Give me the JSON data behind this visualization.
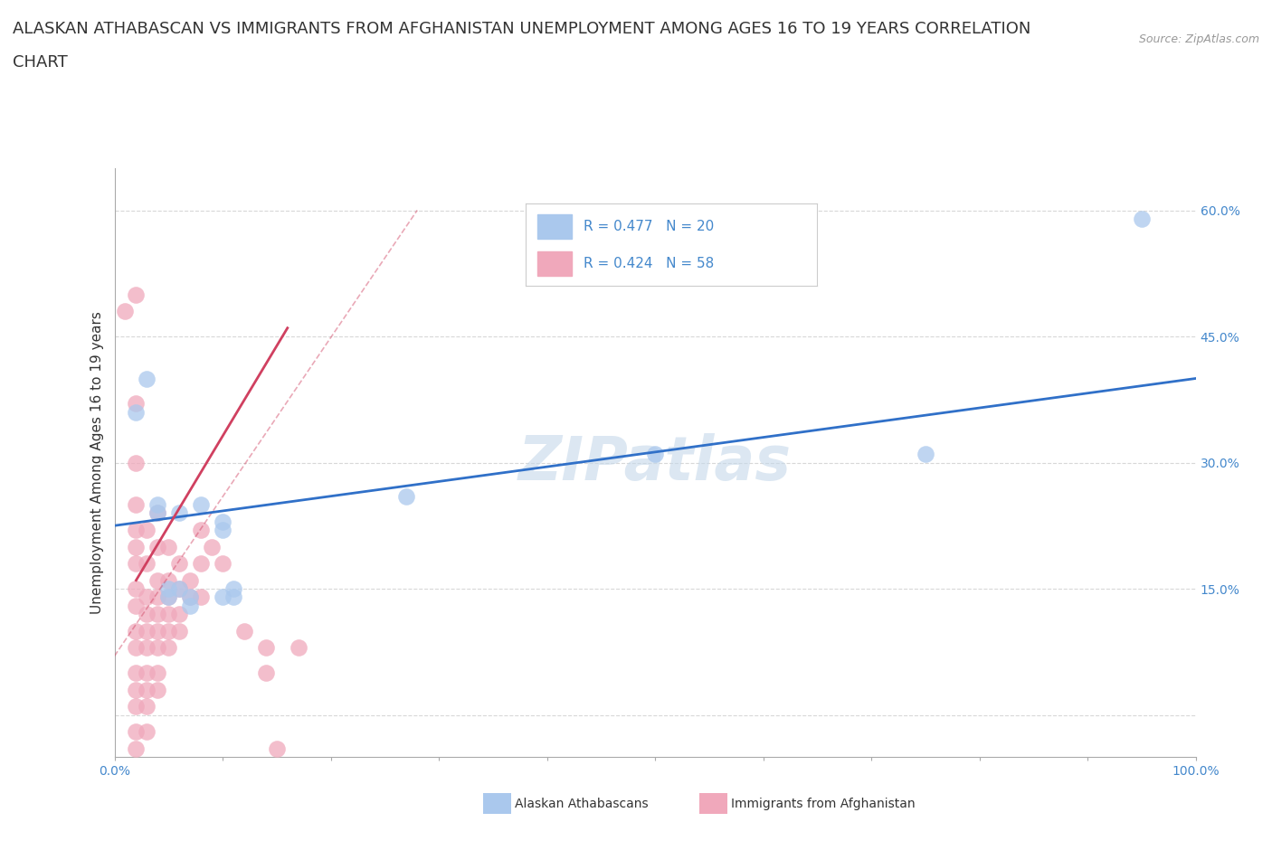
{
  "title_line1": "ALASKAN ATHABASCAN VS IMMIGRANTS FROM AFGHANISTAN UNEMPLOYMENT AMONG AGES 16 TO 19 YEARS CORRELATION",
  "title_line2": "CHART",
  "source": "Source: ZipAtlas.com",
  "ylabel": "Unemployment Among Ages 16 to 19 years",
  "xlim": [
    0.0,
    1.0
  ],
  "ylim": [
    -0.05,
    0.65
  ],
  "yticks": [
    0.0,
    0.15,
    0.3,
    0.45,
    0.6
  ],
  "ytick_labels": [
    "",
    "15.0%",
    "30.0%",
    "45.0%",
    "60.0%"
  ],
  "xtick_positions": [
    0.0,
    0.1,
    0.2,
    0.3,
    0.4,
    0.5,
    0.6,
    0.7,
    0.8,
    0.9,
    1.0
  ],
  "watermark": "ZIPatlas",
  "blue_color": "#aac8ed",
  "pink_color": "#f0a8bb",
  "blue_line_color": "#3070c8",
  "pink_line_color": "#d04060",
  "blue_scatter": [
    [
      0.02,
      0.36
    ],
    [
      0.03,
      0.4
    ],
    [
      0.04,
      0.25
    ],
    [
      0.04,
      0.24
    ],
    [
      0.05,
      0.15
    ],
    [
      0.05,
      0.14
    ],
    [
      0.06,
      0.24
    ],
    [
      0.06,
      0.15
    ],
    [
      0.07,
      0.14
    ],
    [
      0.07,
      0.13
    ],
    [
      0.08,
      0.25
    ],
    [
      0.1,
      0.23
    ],
    [
      0.1,
      0.22
    ],
    [
      0.1,
      0.14
    ],
    [
      0.11,
      0.15
    ],
    [
      0.11,
      0.14
    ],
    [
      0.27,
      0.26
    ],
    [
      0.5,
      0.31
    ],
    [
      0.75,
      0.31
    ],
    [
      0.95,
      0.59
    ]
  ],
  "pink_scatter": [
    [
      0.01,
      0.48
    ],
    [
      0.02,
      0.5
    ],
    [
      0.02,
      0.37
    ],
    [
      0.02,
      0.3
    ],
    [
      0.02,
      0.25
    ],
    [
      0.02,
      0.22
    ],
    [
      0.02,
      0.2
    ],
    [
      0.02,
      0.18
    ],
    [
      0.02,
      0.15
    ],
    [
      0.02,
      0.13
    ],
    [
      0.02,
      0.1
    ],
    [
      0.02,
      0.08
    ],
    [
      0.02,
      0.05
    ],
    [
      0.02,
      0.03
    ],
    [
      0.02,
      0.01
    ],
    [
      0.02,
      -0.02
    ],
    [
      0.02,
      -0.04
    ],
    [
      0.03,
      0.22
    ],
    [
      0.03,
      0.18
    ],
    [
      0.03,
      0.14
    ],
    [
      0.03,
      0.12
    ],
    [
      0.03,
      0.1
    ],
    [
      0.03,
      0.08
    ],
    [
      0.03,
      0.05
    ],
    [
      0.03,
      0.03
    ],
    [
      0.03,
      0.01
    ],
    [
      0.03,
      -0.02
    ],
    [
      0.04,
      0.24
    ],
    [
      0.04,
      0.2
    ],
    [
      0.04,
      0.16
    ],
    [
      0.04,
      0.14
    ],
    [
      0.04,
      0.12
    ],
    [
      0.04,
      0.1
    ],
    [
      0.04,
      0.08
    ],
    [
      0.04,
      0.05
    ],
    [
      0.04,
      0.03
    ],
    [
      0.05,
      0.2
    ],
    [
      0.05,
      0.16
    ],
    [
      0.05,
      0.14
    ],
    [
      0.05,
      0.12
    ],
    [
      0.05,
      0.1
    ],
    [
      0.05,
      0.08
    ],
    [
      0.06,
      0.18
    ],
    [
      0.06,
      0.15
    ],
    [
      0.06,
      0.12
    ],
    [
      0.06,
      0.1
    ],
    [
      0.07,
      0.16
    ],
    [
      0.07,
      0.14
    ],
    [
      0.08,
      0.22
    ],
    [
      0.08,
      0.18
    ],
    [
      0.08,
      0.14
    ],
    [
      0.09,
      0.2
    ],
    [
      0.1,
      0.18
    ],
    [
      0.12,
      0.1
    ],
    [
      0.14,
      0.08
    ],
    [
      0.14,
      0.05
    ],
    [
      0.15,
      -0.04
    ],
    [
      0.17,
      0.08
    ]
  ],
  "blue_line_x": [
    0.0,
    1.0
  ],
  "blue_line_y": [
    0.225,
    0.4
  ],
  "pink_line_x": [
    0.02,
    0.16
  ],
  "pink_line_y": [
    0.16,
    0.46
  ],
  "pink_dashed_line_x": [
    0.0,
    0.28
  ],
  "pink_dashed_line_y": [
    0.07,
    0.6
  ],
  "background_color": "#ffffff",
  "grid_color": "#d8d8d8",
  "title_fontsize": 13,
  "axis_label_fontsize": 11,
  "tick_fontsize": 10,
  "watermark_fontsize": 48,
  "watermark_color": "#c5d8ea",
  "xlabel_legend1": "Alaskan Athabascans",
  "xlabel_legend2": "Immigrants from Afghanistan",
  "legend_text1": "R = 0.477   N = 20",
  "legend_text2": "R = 0.424   N = 58",
  "tick_color": "#4488cc"
}
